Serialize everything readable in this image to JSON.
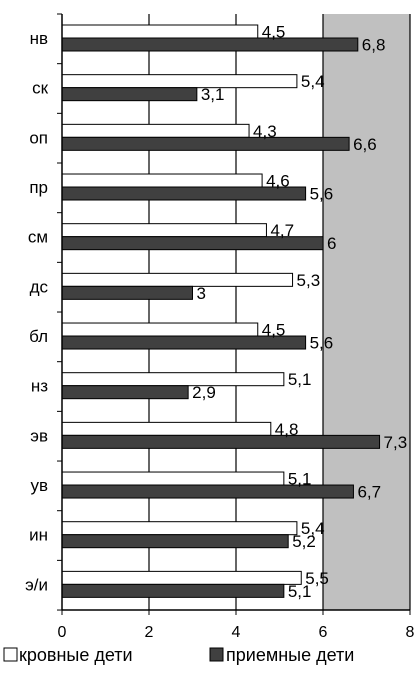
{
  "chart_data": {
    "type": "bar",
    "orientation": "horizontal",
    "categories": [
      "нв",
      "ск",
      "оп",
      "пр",
      "см",
      "дс",
      "бл",
      "нз",
      "эв",
      "ув",
      "ин",
      "э/и"
    ],
    "series": [
      {
        "name": "кровные дети",
        "values": [
          4.5,
          5.4,
          4.3,
          4.6,
          4.7,
          5.3,
          4.5,
          5.1,
          4.8,
          5.1,
          5.4,
          5.5
        ],
        "labels": [
          "4,5",
          "5,4",
          "4,3",
          "4,6",
          "4,7",
          "5,3",
          "4,5",
          "5,1",
          "4,8",
          "5,1",
          "5,4",
          "5,5"
        ],
        "color": "#ffffff"
      },
      {
        "name": "приемные дети",
        "values": [
          6.8,
          3.1,
          6.6,
          5.6,
          6,
          3,
          5.6,
          2.9,
          7.3,
          6.7,
          5.2,
          5.1
        ],
        "labels": [
          "6,8",
          "3,1",
          "6,6",
          "5,6",
          "6",
          "3",
          "5,6",
          "2,9",
          "7,3",
          "6,7",
          "5,2",
          "5,1"
        ],
        "color": "#404040"
      }
    ],
    "xlim": [
      0,
      8
    ],
    "xticks": [
      "0",
      "2",
      "4",
      "6",
      "8"
    ],
    "gridlines": true,
    "plot_background": "#c0c0c0",
    "legend_position": "bottom",
    "title": "",
    "xlabel": "",
    "ylabel": ""
  }
}
